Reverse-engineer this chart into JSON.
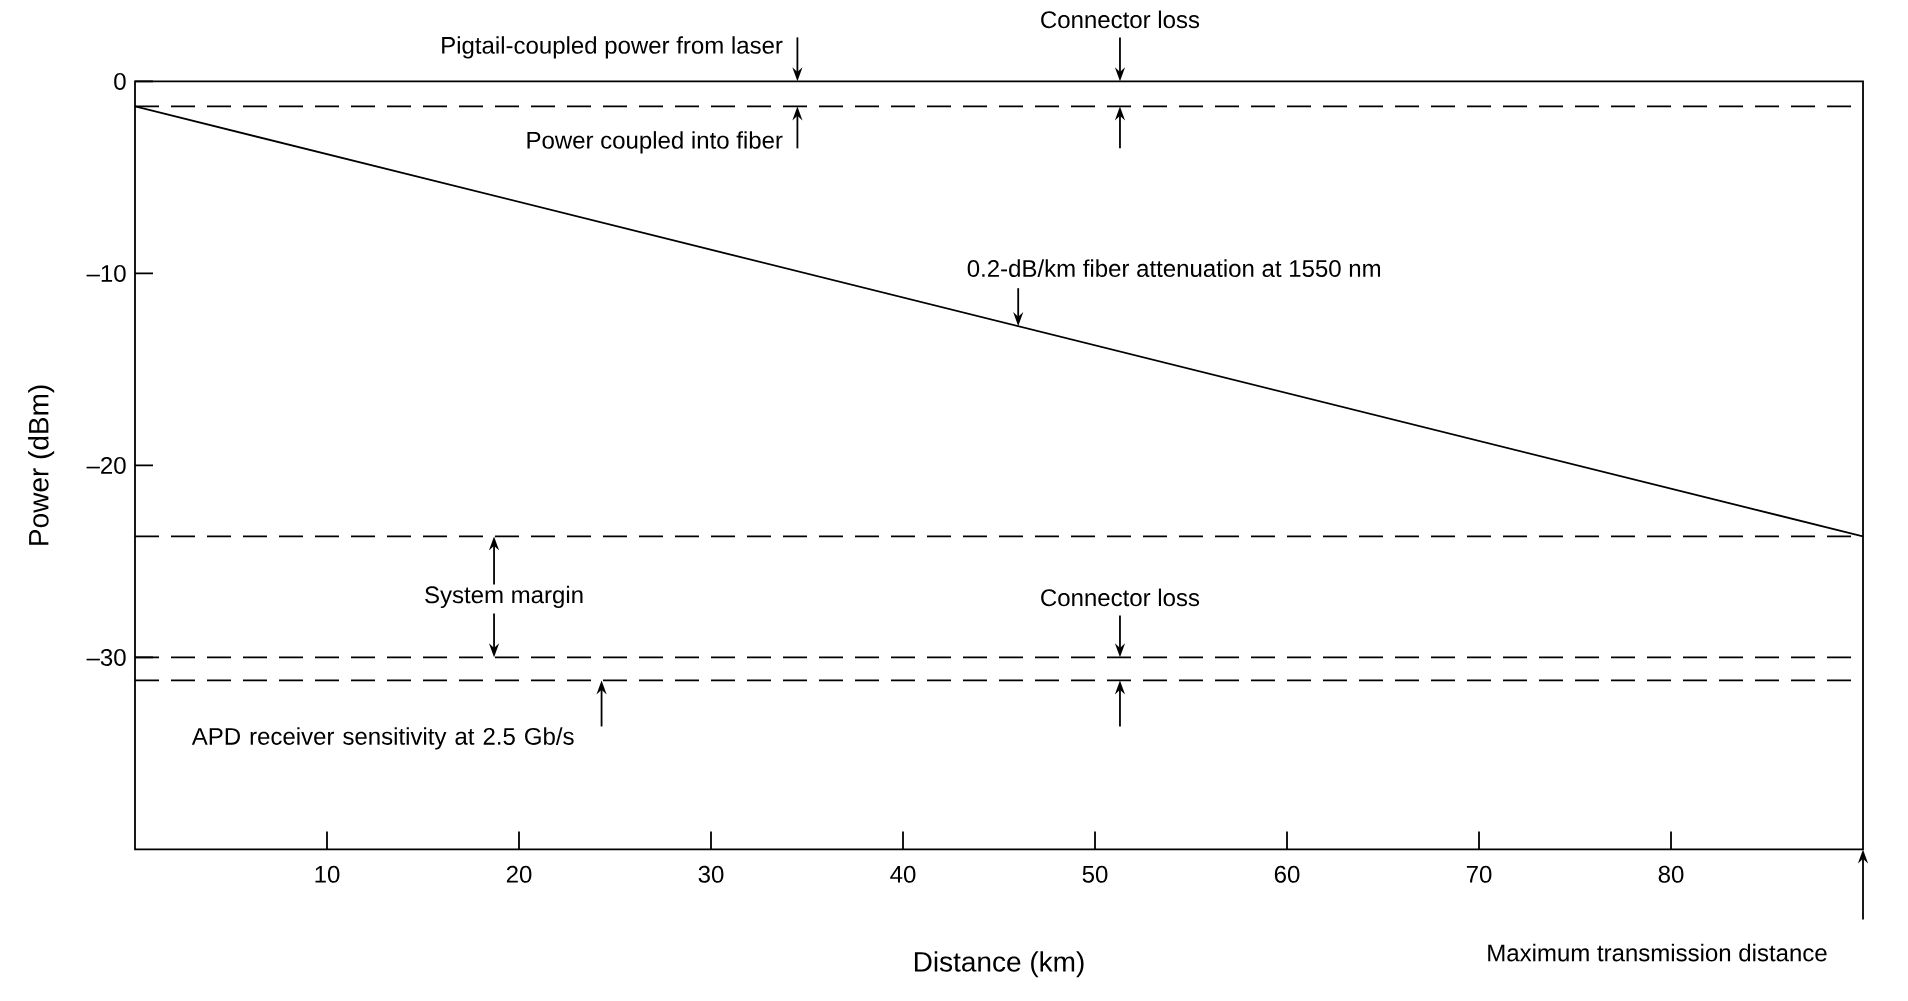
{
  "chart_data": {
    "type": "line",
    "xlabel": "Distance (km)",
    "ylabel": "Power (dBm)",
    "xlim": [
      0,
      90
    ],
    "ylim": [
      -40,
      0
    ],
    "xticks": [
      10,
      20,
      30,
      40,
      50,
      60,
      70,
      80
    ],
    "yticks": [
      0,
      {
        "value": -10,
        "label": "–10"
      },
      {
        "value": -20,
        "label": "–20"
      },
      {
        "value": -30,
        "label": "–30"
      }
    ],
    "series": [
      {
        "color": "#000000",
        "x": [
          0,
          90
        ],
        "values": [
          -1.3,
          -23.7
        ]
      }
    ],
    "ref_lines": [
      {
        "axis": "y",
        "value": -1.3,
        "line_style": "dashed"
      },
      {
        "axis": "y",
        "value": -23.7,
        "line_style": "dashed"
      },
      {
        "axis": "y",
        "value": -30,
        "line_style": "dashed"
      },
      {
        "axis": "y",
        "value": -31.2,
        "line_style": "dashed"
      }
    ],
    "annotations": [
      "Pigtail-coupled power from laser",
      "Connector loss",
      {
        "text": "Power coupled into fiber",
        "x": 34.5,
        "y": -1.3
      },
      {
        "text": "0.2-dB/km fiber attenuation at 1550 nm",
        "x": 46,
        "y": -12.75
      },
      {
        "text": "System margin",
        "x": 18.7,
        "y": -23.7
      },
      {
        "text": "Connector loss",
        "x": 51.3,
        "y": -30
      },
      "APD receiver sensitivity at 2.5 Gb/s",
      "Maximum transmission distance"
    ]
  }
}
